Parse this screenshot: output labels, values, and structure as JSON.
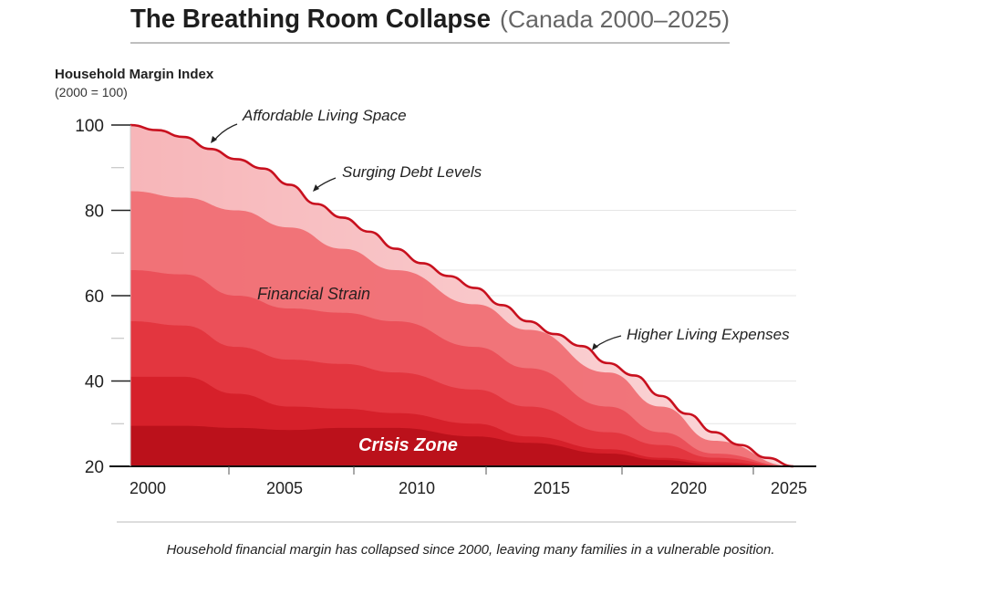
{
  "chart_data": {
    "type": "area",
    "title": "The Breathing Room Collapse",
    "subtitle": "(Canada 2000–2025)",
    "ylabel": "Household Margin Index",
    "ylabel_note": "(2000 = 100)",
    "ylim": [
      20,
      100
    ],
    "xlim": [
      2000,
      2025
    ],
    "y_ticks": [
      "100",
      "80",
      "60",
      "40",
      "20"
    ],
    "x_ticks": [
      "2000",
      "2005",
      "2010",
      "2015",
      "2020",
      "2025"
    ],
    "grid": true,
    "top_line": {
      "color": "#c8101e",
      "x": [
        2000,
        2001,
        2002,
        2003,
        2004,
        2005,
        2006,
        2007,
        2008,
        2009,
        2010,
        2011,
        2012,
        2013,
        2014,
        2015,
        2016,
        2017,
        2018,
        2019,
        2020,
        2021,
        2022,
        2023,
        2024,
        2025
      ],
      "y": [
        100,
        98.8,
        97.2,
        94.4,
        92,
        89.8,
        86,
        81.5,
        78.3,
        75,
        71,
        67.6,
        64.6,
        61.8,
        57.8,
        54,
        51,
        48.2,
        44.2,
        41.3,
        36.5,
        32.3,
        28,
        25,
        22,
        20
      ]
    },
    "layer_x": [
      2000,
      2002,
      2004,
      2006,
      2008,
      2010,
      2013,
      2015,
      2018,
      2020,
      2022,
      2025
    ],
    "layers": [
      {
        "color": "#f06a70",
        "values": [
          84.5,
          83,
          80,
          76,
          71,
          66,
          58,
          52,
          42,
          34,
          26,
          20
        ]
      },
      {
        "color": "#ea4d55",
        "values": [
          66,
          65,
          60,
          57,
          56,
          54,
          48,
          43,
          34,
          28,
          23,
          20
        ]
      },
      {
        "color": "#e2333c",
        "values": [
          54,
          53,
          48,
          45,
          44,
          42,
          38,
          34,
          28,
          25,
          22,
          20
        ]
      },
      {
        "color": "#d41e28",
        "values": [
          41,
          41,
          37,
          34,
          33.5,
          32.5,
          30,
          27,
          24,
          22,
          21,
          20
        ]
      },
      {
        "color": "#b80f19",
        "values": [
          29.5,
          29.5,
          29,
          28.5,
          29,
          29,
          27,
          25.5,
          23,
          21.5,
          20.5,
          20
        ]
      }
    ],
    "top_fill_color": "#f7b6b9",
    "annotations": {
      "affordable": "Affordable Living Space",
      "debt": "Surging Debt Levels",
      "strain": "Financial Strain",
      "expenses": "Higher Living Expenses",
      "crisis": "Crisis Zone"
    },
    "caption": "Household financial margin has collapsed since 2000, leaving many families in a vulnerable position."
  }
}
